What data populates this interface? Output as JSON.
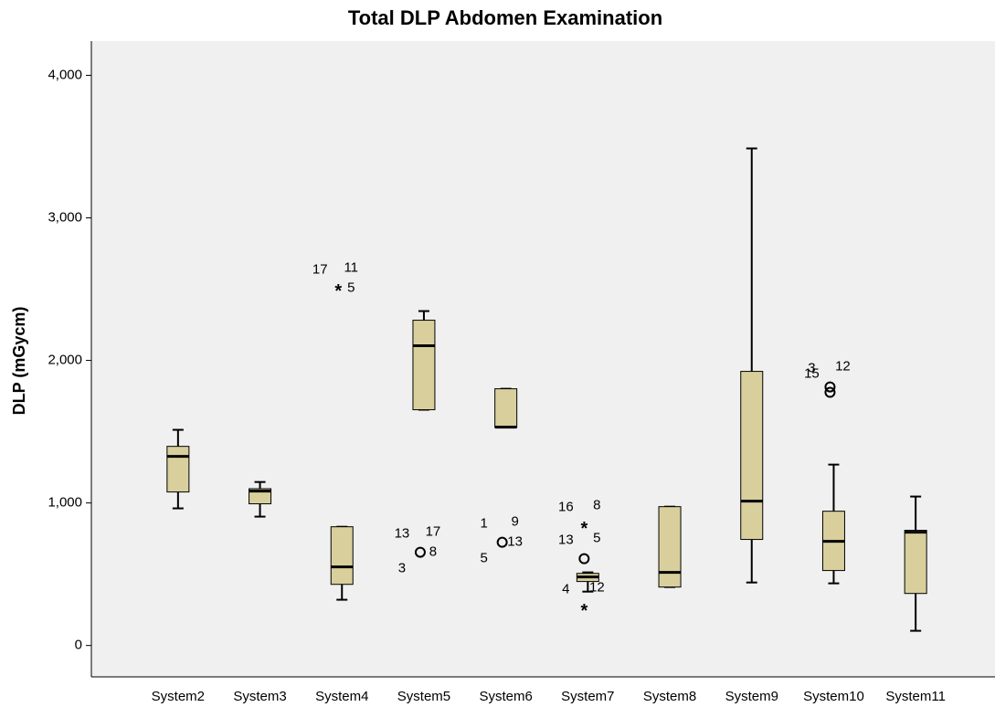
{
  "chart_data": {
    "type": "box",
    "title": "Total DLP Abdomen Examination",
    "y_label": "DLP (mGycm)",
    "categories": [
      "System2",
      "System3",
      "System4",
      "System5",
      "System6",
      "System7",
      "System8",
      "System9",
      "System10",
      "System11"
    ],
    "color": "#d8cf9c",
    "ylim": [
      -220,
      4240
    ],
    "yticks": [
      0,
      {
        "value": 1000,
        "label": "1,000"
      },
      {
        "value": 2000,
        "label": "2,000"
      },
      {
        "value": 3000,
        "label": "3,000"
      },
      {
        "value": 4000,
        "label": "4,000"
      }
    ],
    "grid": false,
    "boxes": [
      {
        "whisker_low": 962,
        "q1": 1077,
        "median": 1327,
        "q3": 1397,
        "whisker_high": 1513,
        "outliers": []
      },
      {
        "whisker_low": 904,
        "q1": 994,
        "median": 1083,
        "q3": 1100,
        "whisker_high": 1147,
        "outliers": []
      },
      {
        "whisker_low": 321,
        "q1": 429,
        "median": 551,
        "q3": 833,
        "whisker_high": 833,
        "outliers": [
          {
            "value": 2506,
            "marker": "star",
            "labels": [
              "17",
              "11",
              "5"
            ]
          }
        ]
      },
      {
        "whisker_low": 1654,
        "q1": 1654,
        "median": 2103,
        "q3": 2282,
        "whisker_high": 2346,
        "outliers": [
          {
            "value": 654,
            "marker": "circle",
            "labels": [
              "13",
              "17",
              "8",
              "3"
            ]
          }
        ]
      },
      {
        "whisker_low": 1532,
        "q1": 1532,
        "median": 1532,
        "q3": 1801,
        "whisker_high": 1801,
        "outliers": [
          {
            "value": 724,
            "marker": "circle",
            "labels": [
              "1",
              "9",
              "13",
              "5"
            ]
          }
        ]
      },
      {
        "whisker_low": 378,
        "q1": 449,
        "median": 481,
        "q3": 506,
        "whisker_high": 513,
        "outliers": [
          {
            "value": 840,
            "marker": "star",
            "labels": [
              "16",
              "8"
            ]
          },
          {
            "value": 609,
            "marker": "circle",
            "labels": [
              "13",
              "5"
            ]
          },
          {
            "value": 263,
            "marker": "star",
            "labels": [
              "4",
              "12"
            ]
          }
        ]
      },
      {
        "whisker_low": 410,
        "q1": 410,
        "median": 513,
        "q3": 974,
        "whisker_high": 974,
        "outliers": []
      },
      {
        "whisker_low": 442,
        "q1": 744,
        "median": 1013,
        "q3": 1923,
        "whisker_high": 3487,
        "outliers": []
      },
      {
        "whisker_low": 436,
        "q1": 526,
        "median": 731,
        "q3": 942,
        "whisker_high": 1269,
        "outliers": [
          {
            "value": 1814,
            "marker": "circle",
            "labels": [
              "3",
              "12"
            ]
          },
          {
            "value": 1776,
            "marker": "circle",
            "labels": [
              "15"
            ]
          }
        ]
      },
      {
        "whisker_low": 103,
        "q1": 365,
        "median": 795,
        "q3": 808,
        "whisker_high": 1045,
        "outliers": []
      }
    ]
  }
}
